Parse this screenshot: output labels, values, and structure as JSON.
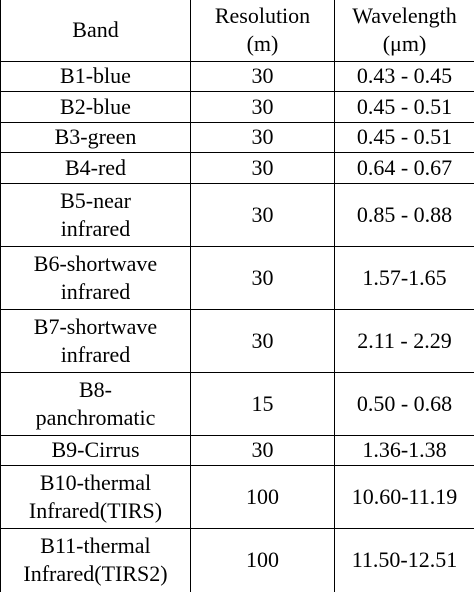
{
  "table": {
    "header": [
      [
        "Band"
      ],
      [
        "Resolution",
        "(m)"
      ],
      [
        "Wavelength",
        "(μm)"
      ]
    ],
    "rows": [
      [
        [
          "B1-blue"
        ],
        [
          30
        ],
        [
          "0.43 - 0.45"
        ]
      ],
      [
        [
          "B2-blue"
        ],
        [
          30
        ],
        [
          "0.45 - 0.51"
        ]
      ],
      [
        [
          "B3-green"
        ],
        [
          30
        ],
        [
          "0.45 - 0.51"
        ]
      ],
      [
        [
          "B4-red"
        ],
        [
          30
        ],
        [
          "0.64 - 0.67"
        ]
      ],
      [
        [
          "B5-near",
          "infrared"
        ],
        [
          30
        ],
        [
          "0.85 - 0.88"
        ]
      ],
      [
        [
          "B6-shortwave",
          "infrared"
        ],
        [
          30
        ],
        [
          "1.57-1.65"
        ]
      ],
      [
        [
          "B7-shortwave",
          "infrared"
        ],
        [
          30
        ],
        [
          "2.11 - 2.29"
        ]
      ],
      [
        [
          "B8-",
          "panchromatic"
        ],
        [
          15
        ],
        [
          "0.50 - 0.68"
        ]
      ],
      [
        [
          "B9-Cirrus"
        ],
        [
          30
        ],
        [
          "1.36-1.38"
        ]
      ],
      [
        [
          "B10-thermal",
          "Infrared(TIRS)"
        ],
        [
          100
        ],
        [
          "10.60-11.19"
        ]
      ],
      [
        [
          "B11-thermal",
          "Infrared(TIRS2)"
        ],
        [
          100
        ],
        [
          "11.50-12.51"
        ]
      ]
    ]
  }
}
